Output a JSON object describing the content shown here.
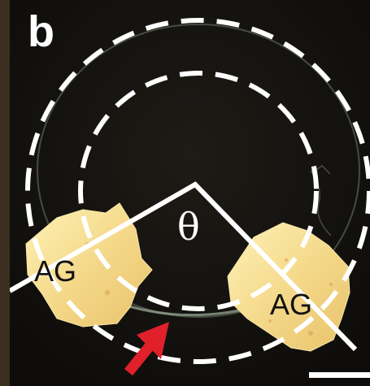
{
  "panel": {
    "label": "b"
  },
  "annotations": {
    "angle_symbol": "θ",
    "left_patch_label": "AG",
    "right_patch_label": "AG"
  },
  "colors": {
    "background": "#141210",
    "overlay": "#ffffff",
    "patch": "#f6e3a0",
    "arrow": "#e0202a",
    "label_text": "#ffffff",
    "patch_text": "#111111"
  },
  "marker": {
    "type": "arrow-icon",
    "color": "red"
  },
  "scale_bar": {
    "label": ""
  }
}
